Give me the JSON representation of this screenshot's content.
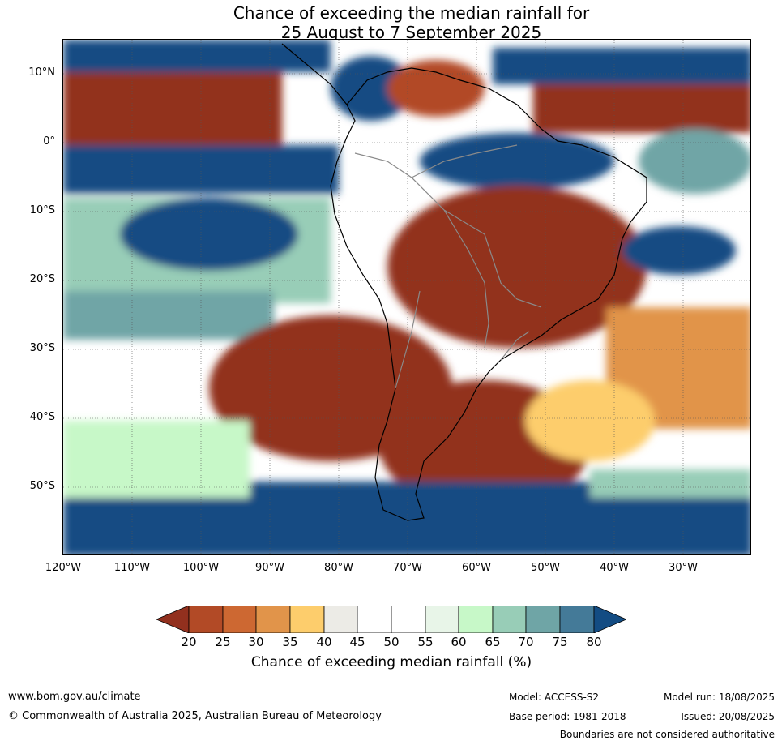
{
  "title": {
    "line1": "Chance of exceeding the median rainfall for",
    "line2": "25 August to 7 September 2025"
  },
  "map": {
    "lat_labels": [
      "10°N",
      "0°",
      "10°S",
      "20°S",
      "30°S",
      "40°S",
      "50°S"
    ],
    "lon_labels": [
      "120°W",
      "110°W",
      "100°W",
      "90°W",
      "80°W",
      "70°W",
      "60°W",
      "50°W",
      "40°W",
      "30°W"
    ],
    "colors": {
      "c20": "#92301e",
      "c25": "#b24a26",
      "c30": "#cd6832",
      "c35": "#e1944a",
      "c40": "#fdcd6c",
      "c45": "#ecebe6",
      "c50": "#ffffff",
      "c55": "#ffffff",
      "c60": "#e8f5e8",
      "c65": "#c7f8c8",
      "c70": "#98cdb7",
      "c75": "#6fa5a6",
      "c80": "#447a98",
      "c_over": "#134c83"
    }
  },
  "colorbar": {
    "ticks": [
      "20",
      "25",
      "30",
      "35",
      "40",
      "45",
      "50",
      "55",
      "60",
      "65",
      "70",
      "75",
      "80"
    ],
    "label": "Chance of exceeding median rainfall (%)"
  },
  "footer": {
    "website": "www.bom.gov.au/climate",
    "copyright": "© Commonwealth of Australia 2025, Australian Bureau of Meteorology",
    "model": "Model: ACCESS-S2",
    "base_period": "Base period: 1981-2018",
    "model_run": "Model run: 18/08/2025",
    "issued": "Issued: 20/08/2025",
    "disclaimer": "Boundaries are not considered authoritative"
  }
}
